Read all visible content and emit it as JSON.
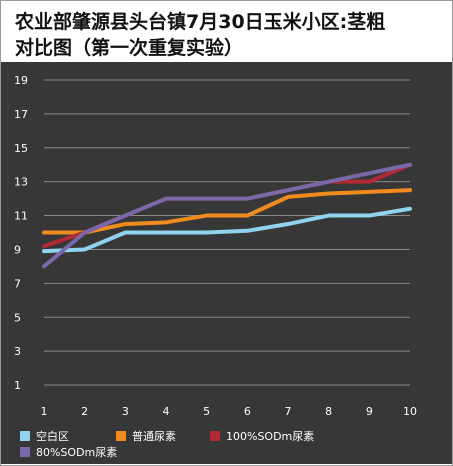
{
  "chart_data": {
    "type": "line",
    "title": "农业部肇源县头台镇7月30日玉米小区:茎粗\n对比图（第一次重复实验）",
    "xlabel": "",
    "ylabel": "",
    "x": [
      1,
      2,
      3,
      4,
      5,
      6,
      7,
      8,
      9,
      10
    ],
    "xticks": [
      "1",
      "2",
      "3",
      "4",
      "5",
      "6",
      "7",
      "8",
      "9",
      "10"
    ],
    "yticks": [
      "1",
      "3",
      "5",
      "7",
      "9",
      "11",
      "13",
      "15",
      "17",
      "19"
    ],
    "ylim": [
      0,
      20
    ],
    "grid": true,
    "legend_position": "bottom",
    "series": [
      {
        "name": "空白区",
        "color": "#8fd3ee",
        "values": [
          8.9,
          9.0,
          10.0,
          10.0,
          10.0,
          10.1,
          10.5,
          11.0,
          11.0,
          11.4
        ]
      },
      {
        "name": "普通尿素",
        "color": "#f08c1e",
        "values": [
          10.0,
          10.0,
          10.5,
          10.6,
          11.0,
          11.0,
          12.1,
          12.3,
          12.4,
          12.5
        ]
      },
      {
        "name": "100%SODm尿素",
        "color": "#b22a36",
        "values": [
          9.2,
          10.0,
          11.0,
          12.0,
          12.0,
          12.0,
          12.5,
          13.0,
          13.0,
          14.0
        ]
      },
      {
        "name": "80%SODm尿素",
        "color": "#7b68a8",
        "values": [
          8.0,
          10.0,
          11.0,
          12.0,
          12.0,
          12.0,
          12.5,
          13.0,
          13.5,
          14.0
        ]
      }
    ]
  }
}
